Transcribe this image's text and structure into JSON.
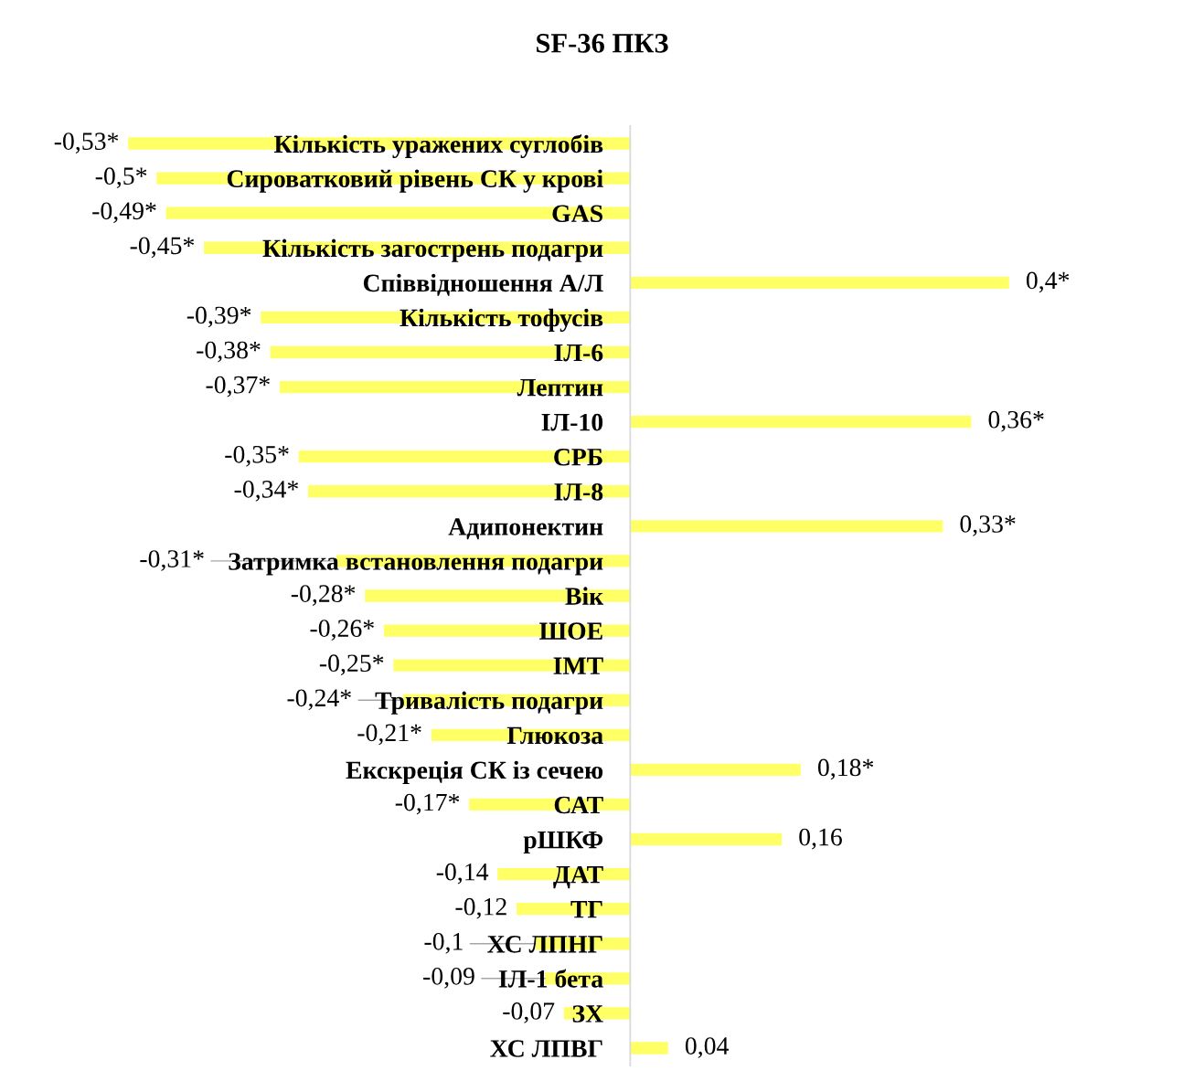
{
  "chart_data": {
    "type": "bar",
    "orientation": "horizontal",
    "title": "SF-36 ПКЗ",
    "categories": [
      "Кількість уражених суглобів",
      "Сироватковий рівень СК у крові",
      "GAS",
      "Кількість загострень подагри",
      "Співвідношення А/Л",
      "Кількість тофусів",
      "ІЛ-6",
      "Лептин",
      "ІЛ-10",
      "СРБ",
      "ІЛ-8",
      "Адипонектин",
      "Затримка встановлення подагри",
      "Вік",
      "ШОЕ",
      "ІМТ",
      "Тривалість подагри",
      "Глюкоза",
      "Екскреція СК із сечею",
      "САТ",
      "рШКФ",
      "ДАТ",
      "ТГ",
      "ХС ЛПНГ",
      "ІЛ-1 бета",
      "ЗХ",
      "ХС ЛПВГ"
    ],
    "values": [
      -0.53,
      -0.5,
      -0.49,
      -0.45,
      0.4,
      -0.39,
      -0.38,
      -0.37,
      0.36,
      -0.35,
      -0.34,
      0.33,
      -0.31,
      -0.28,
      -0.26,
      -0.25,
      -0.24,
      -0.21,
      0.18,
      -0.17,
      0.16,
      -0.14,
      -0.12,
      -0.1,
      -0.09,
      -0.07,
      0.04
    ],
    "value_labels": [
      "-0,53*",
      "-0,5*",
      "-0,49*",
      "-0,45*",
      "0,4*",
      "-0,39*",
      "-0,38*",
      "-0,37*",
      "0,36*",
      "-0,35*",
      "-0,34*",
      "0,33*",
      "-0,31*",
      "-0,28*",
      "-0,26*",
      "-0,25*",
      "-0,24*",
      "-0,21*",
      "0,18*",
      "-0,17*",
      "0,16",
      "-0,14",
      "-0,12",
      "-0,1",
      "-0,09",
      "-0,07",
      "0,04"
    ],
    "color": "#ffff66",
    "tick_labels": "y"
  }
}
